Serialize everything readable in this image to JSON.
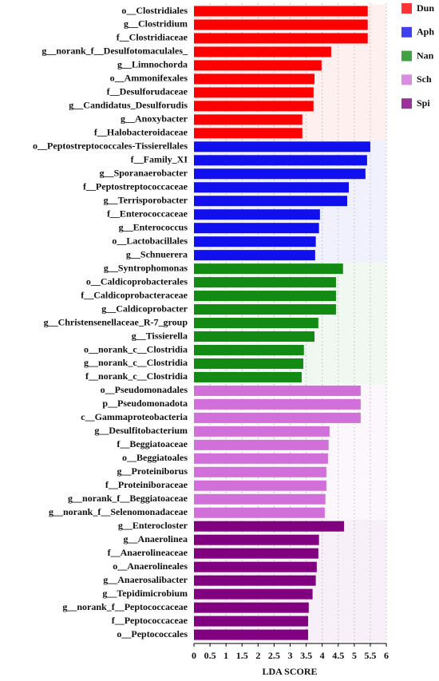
{
  "chart_data": {
    "type": "bar",
    "orientation": "horizontal",
    "xlabel": "LDA SCORE",
    "categories": [
      "o__Clostridiales",
      "g__Clostridium",
      "f__Clostridiaceae",
      "g__norank_f__Desulfotomaculales_",
      "g__Limnochorda",
      "o__Ammonifexales",
      "f__Desulforudaceae",
      "g__Candidatus_Desulforudis",
      "g__Anoxybacter",
      "f__Halobacteroidaceae",
      "o__Peptostreptococcales-Tissierellales",
      "f__Family_XI",
      "g__Sporanaerobacter",
      "f__Peptostreptococcaceae",
      "g__Terrisporobacter",
      "f__Enterococcaceae",
      "g__Enterococcus",
      "o__Lactobacillales",
      "g__Schnuerera",
      "g__Syntrophomonas",
      "o__Caldicoprobacterales",
      "f__Caldicoprobacteraceae",
      "g__Caldicoprobacter",
      "g__Christensenellaceae_R-7_group",
      "g__Tissierella",
      "o__norank_c__Clostridia",
      "g__norank_c__Clostridia",
      "f__norank_c__Clostridia",
      "o__Pseudomonadales",
      "p__Pseudomonadota",
      "c__Gammaproteobacteria",
      "g__Desulfitobacterium",
      "f__Beggiatoaceae",
      "o__Beggiatoales",
      "g__Proteiniborus",
      "f__Proteiniboraceae",
      "g__norank_f__Beggiatoaceae",
      "g__norank_f__Selenomonadaceae",
      "g__Enterocloster",
      "g__Anaerolinea",
      "f__Anaerolineaceae",
      "o__Anaerolineales",
      "g__Anaerosalibacter",
      "g__Tepidimicrobium",
      "g__norank_f__Peptococcaceae",
      "f__Peptococcaceae",
      "o__Peptococcales"
    ],
    "series": [
      {
        "name": "Dun",
        "color": "#ff0000",
        "values": [
          5.42,
          5.42,
          5.42,
          4.28,
          3.98,
          3.76,
          3.73,
          3.73,
          3.38,
          3.38,
          null,
          null,
          null,
          null,
          null,
          null,
          null,
          null,
          null,
          null,
          null,
          null,
          null,
          null,
          null,
          null,
          null,
          null,
          null,
          null,
          null,
          null,
          null,
          null,
          null,
          null,
          null,
          null,
          null,
          null,
          null,
          null,
          null,
          null,
          null,
          null,
          null
        ]
      },
      {
        "name": "Aph",
        "color": "#1010ee",
        "values": [
          null,
          null,
          null,
          null,
          null,
          null,
          null,
          null,
          null,
          null,
          5.5,
          5.4,
          5.35,
          4.83,
          4.78,
          3.93,
          3.9,
          3.8,
          3.78,
          null,
          null,
          null,
          null,
          null,
          null,
          null,
          null,
          null,
          null,
          null,
          null,
          null,
          null,
          null,
          null,
          null,
          null,
          null,
          null,
          null,
          null,
          null,
          null,
          null,
          null,
          null,
          null
        ]
      },
      {
        "name": "Nan",
        "color": "#138a13",
        "values": [
          null,
          null,
          null,
          null,
          null,
          null,
          null,
          null,
          null,
          null,
          null,
          null,
          null,
          null,
          null,
          null,
          null,
          null,
          null,
          4.65,
          4.43,
          4.43,
          4.43,
          3.88,
          3.76,
          3.43,
          3.41,
          3.36,
          null,
          null,
          null,
          null,
          null,
          null,
          null,
          null,
          null,
          null,
          null,
          null,
          null,
          null,
          null,
          null,
          null,
          null,
          null
        ]
      },
      {
        "name": "Sch",
        "color": "#d070d8",
        "values": [
          null,
          null,
          null,
          null,
          null,
          null,
          null,
          null,
          null,
          null,
          null,
          null,
          null,
          null,
          null,
          null,
          null,
          null,
          null,
          null,
          null,
          null,
          null,
          null,
          null,
          null,
          null,
          null,
          5.2,
          5.2,
          5.2,
          4.23,
          4.2,
          4.18,
          4.13,
          4.13,
          4.1,
          4.08,
          null,
          null,
          null,
          null,
          null,
          null,
          null,
          null,
          null
        ]
      },
      {
        "name": "Spi",
        "color": "#800080",
        "values": [
          null,
          null,
          null,
          null,
          null,
          null,
          null,
          null,
          null,
          null,
          null,
          null,
          null,
          null,
          null,
          null,
          null,
          null,
          null,
          null,
          null,
          null,
          null,
          null,
          null,
          null,
          null,
          null,
          null,
          null,
          null,
          null,
          null,
          null,
          null,
          null,
          null,
          null,
          4.68,
          3.9,
          3.88,
          3.83,
          3.8,
          3.7,
          3.58,
          3.56,
          3.56
        ]
      }
    ],
    "xlim": [
      0,
      6
    ],
    "xticks": [
      0,
      0.5,
      1,
      1.5,
      2,
      2.5,
      3,
      3.5,
      4,
      4.5,
      5,
      5.5,
      6
    ],
    "grid": true,
    "legend": "right"
  }
}
